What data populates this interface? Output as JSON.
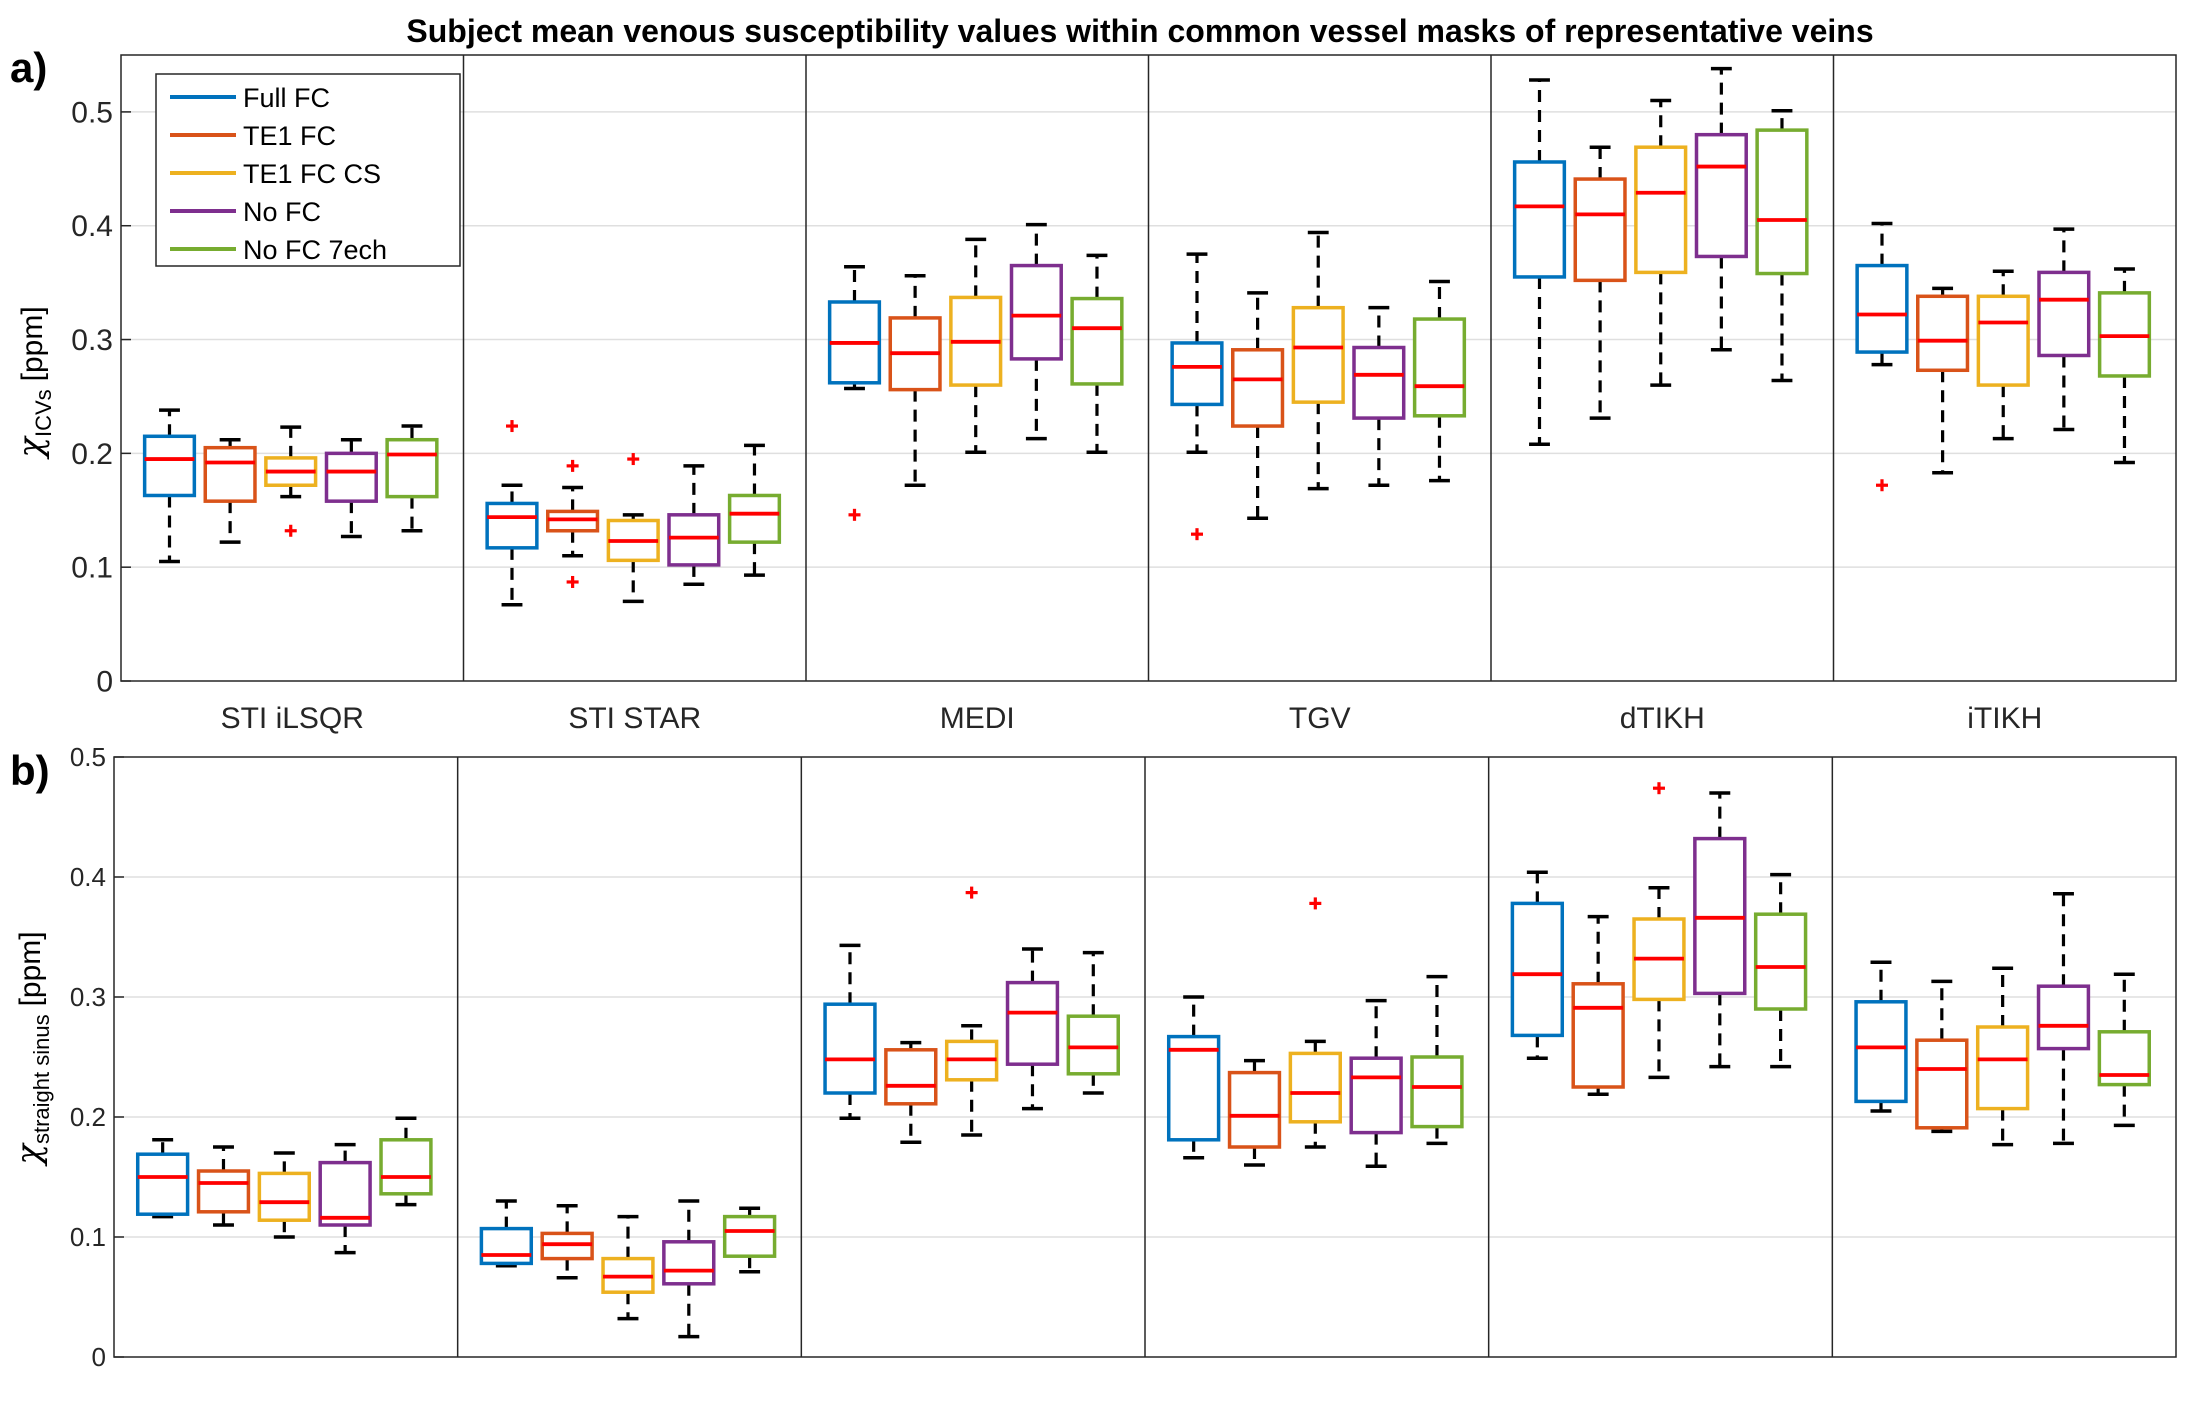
{
  "figure_title": "Subject mean venous susceptibility values within common vessel masks of representative veins",
  "colors": {
    "Full FC": "#0072BD",
    "TE1 FC": "#D95319",
    "TE1 FC CS": "#EDB120",
    "No FC": "#7E2F8E",
    "No FC 7ech": "#77AC30",
    "median": "#FF0000",
    "outlier": "#FF0000",
    "whisker": "#000000",
    "grid": "#DFDFDF"
  },
  "chart_data": [
    {
      "type": "boxplot",
      "panel_label": "a)",
      "title": "Subject mean venous susceptibility values within common vessel masks of representative veins",
      "ylabel_symbol": "χ",
      "ylabel_sub": "ICVs",
      "ylabel_unit": "[ppm]",
      "ylim": [
        0,
        0.55
      ],
      "yticks": [
        0,
        0.1,
        0.2,
        0.3,
        0.4,
        0.5
      ],
      "ytick_labels": [
        "0",
        "0.1",
        "0.2",
        "0.3",
        "0.4",
        "0.5"
      ],
      "grid": true,
      "legend": {
        "position": "top-left",
        "entries": [
          "Full FC",
          "TE1 FC",
          "TE1 FC CS",
          "No FC",
          "No FC 7ech"
        ]
      },
      "groups": [
        {
          "name": "STI iLSQR",
          "boxes": [
            {
              "series": "Full FC",
              "min": 0.105,
              "q1": 0.163,
              "median": 0.195,
              "q3": 0.215,
              "max": 0.238,
              "outliers": []
            },
            {
              "series": "TE1 FC",
              "min": 0.122,
              "q1": 0.158,
              "median": 0.192,
              "q3": 0.205,
              "max": 0.212,
              "outliers": []
            },
            {
              "series": "TE1 FC CS",
              "min": 0.162,
              "q1": 0.172,
              "median": 0.184,
              "q3": 0.196,
              "max": 0.223,
              "outliers": [
                0.132
              ]
            },
            {
              "series": "No FC",
              "min": 0.127,
              "q1": 0.158,
              "median": 0.184,
              "q3": 0.2,
              "max": 0.212,
              "outliers": []
            },
            {
              "series": "No FC 7ech",
              "min": 0.132,
              "q1": 0.162,
              "median": 0.199,
              "q3": 0.212,
              "max": 0.224,
              "outliers": []
            }
          ]
        },
        {
          "name": "STI STAR",
          "boxes": [
            {
              "series": "Full FC",
              "min": 0.067,
              "q1": 0.117,
              "median": 0.144,
              "q3": 0.156,
              "max": 0.172,
              "outliers": [
                0.224
              ]
            },
            {
              "series": "TE1 FC",
              "min": 0.11,
              "q1": 0.132,
              "median": 0.142,
              "q3": 0.149,
              "max": 0.17,
              "outliers": [
                0.189,
                0.087
              ]
            },
            {
              "series": "TE1 FC CS",
              "min": 0.07,
              "q1": 0.106,
              "median": 0.123,
              "q3": 0.141,
              "max": 0.146,
              "outliers": [
                0.195
              ]
            },
            {
              "series": "No FC",
              "min": 0.085,
              "q1": 0.102,
              "median": 0.126,
              "q3": 0.146,
              "max": 0.189,
              "outliers": []
            },
            {
              "series": "No FC 7ech",
              "min": 0.093,
              "q1": 0.122,
              "median": 0.147,
              "q3": 0.163,
              "max": 0.207,
              "outliers": []
            }
          ]
        },
        {
          "name": "MEDI",
          "boxes": [
            {
              "series": "Full FC",
              "min": 0.257,
              "q1": 0.262,
              "median": 0.297,
              "q3": 0.333,
              "max": 0.364,
              "outliers": [
                0.146
              ]
            },
            {
              "series": "TE1 FC",
              "min": 0.172,
              "q1": 0.256,
              "median": 0.288,
              "q3": 0.319,
              "max": 0.356,
              "outliers": []
            },
            {
              "series": "TE1 FC CS",
              "min": 0.201,
              "q1": 0.26,
              "median": 0.298,
              "q3": 0.337,
              "max": 0.388,
              "outliers": []
            },
            {
              "series": "No FC",
              "min": 0.213,
              "q1": 0.283,
              "median": 0.321,
              "q3": 0.365,
              "max": 0.401,
              "outliers": []
            },
            {
              "series": "No FC 7ech",
              "min": 0.201,
              "q1": 0.261,
              "median": 0.31,
              "q3": 0.336,
              "max": 0.374,
              "outliers": []
            }
          ]
        },
        {
          "name": "TGV",
          "boxes": [
            {
              "series": "Full FC",
              "min": 0.201,
              "q1": 0.243,
              "median": 0.276,
              "q3": 0.297,
              "max": 0.375,
              "outliers": [
                0.129
              ]
            },
            {
              "series": "TE1 FC",
              "min": 0.143,
              "q1": 0.224,
              "median": 0.265,
              "q3": 0.291,
              "max": 0.341,
              "outliers": []
            },
            {
              "series": "TE1 FC CS",
              "min": 0.169,
              "q1": 0.245,
              "median": 0.293,
              "q3": 0.328,
              "max": 0.394,
              "outliers": []
            },
            {
              "series": "No FC",
              "min": 0.172,
              "q1": 0.231,
              "median": 0.269,
              "q3": 0.293,
              "max": 0.328,
              "outliers": []
            },
            {
              "series": "No FC 7ech",
              "min": 0.176,
              "q1": 0.233,
              "median": 0.259,
              "q3": 0.318,
              "max": 0.351,
              "outliers": []
            }
          ]
        },
        {
          "name": "dTIKH",
          "boxes": [
            {
              "series": "Full FC",
              "min": 0.208,
              "q1": 0.355,
              "median": 0.417,
              "q3": 0.456,
              "max": 0.528,
              "outliers": []
            },
            {
              "series": "TE1 FC",
              "min": 0.231,
              "q1": 0.352,
              "median": 0.41,
              "q3": 0.441,
              "max": 0.469,
              "outliers": []
            },
            {
              "series": "TE1 FC CS",
              "min": 0.26,
              "q1": 0.359,
              "median": 0.429,
              "q3": 0.469,
              "max": 0.51,
              "outliers": []
            },
            {
              "series": "No FC",
              "min": 0.291,
              "q1": 0.373,
              "median": 0.452,
              "q3": 0.48,
              "max": 0.538,
              "outliers": []
            },
            {
              "series": "No FC 7ech",
              "min": 0.264,
              "q1": 0.358,
              "median": 0.405,
              "q3": 0.484,
              "max": 0.501,
              "outliers": []
            }
          ]
        },
        {
          "name": "iTIKH",
          "boxes": [
            {
              "series": "Full FC",
              "min": 0.278,
              "q1": 0.289,
              "median": 0.322,
              "q3": 0.365,
              "max": 0.402,
              "outliers": [
                0.172
              ]
            },
            {
              "series": "TE1 FC",
              "min": 0.183,
              "q1": 0.273,
              "median": 0.299,
              "q3": 0.338,
              "max": 0.345,
              "outliers": []
            },
            {
              "series": "TE1 FC CS",
              "min": 0.213,
              "q1": 0.26,
              "median": 0.315,
              "q3": 0.338,
              "max": 0.36,
              "outliers": []
            },
            {
              "series": "No FC",
              "min": 0.221,
              "q1": 0.286,
              "median": 0.335,
              "q3": 0.359,
              "max": 0.397,
              "outliers": []
            },
            {
              "series": "No FC 7ech",
              "min": 0.192,
              "q1": 0.268,
              "median": 0.303,
              "q3": 0.341,
              "max": 0.362,
              "outliers": []
            }
          ]
        }
      ]
    },
    {
      "type": "boxplot",
      "panel_label": "b)",
      "ylabel_symbol": "χ",
      "ylabel_sub": "straight sinus",
      "ylabel_unit": "[ppm]",
      "ylim": [
        0,
        0.5
      ],
      "yticks": [
        0,
        0.1,
        0.2,
        0.3,
        0.4,
        0.5
      ],
      "ytick_labels": [
        "0",
        "0.1",
        "0.2",
        "0.3",
        "0.4",
        "0.5"
      ],
      "grid": true,
      "groups": [
        {
          "name": "STI iLSQR",
          "boxes": [
            {
              "series": "Full FC",
              "min": 0.117,
              "q1": 0.119,
              "median": 0.15,
              "q3": 0.169,
              "max": 0.181,
              "outliers": []
            },
            {
              "series": "TE1 FC",
              "min": 0.11,
              "q1": 0.121,
              "median": 0.145,
              "q3": 0.155,
              "max": 0.175,
              "outliers": []
            },
            {
              "series": "TE1 FC CS",
              "min": 0.1,
              "q1": 0.114,
              "median": 0.129,
              "q3": 0.153,
              "max": 0.17,
              "outliers": []
            },
            {
              "series": "No FC",
              "min": 0.087,
              "q1": 0.11,
              "median": 0.116,
              "q3": 0.162,
              "max": 0.177,
              "outliers": []
            },
            {
              "series": "No FC 7ech",
              "min": 0.127,
              "q1": 0.136,
              "median": 0.15,
              "q3": 0.181,
              "max": 0.199,
              "outliers": []
            }
          ]
        },
        {
          "name": "STI STAR",
          "boxes": [
            {
              "series": "Full FC",
              "min": 0.076,
              "q1": 0.078,
              "median": 0.085,
              "q3": 0.107,
              "max": 0.13,
              "outliers": []
            },
            {
              "series": "TE1 FC",
              "min": 0.066,
              "q1": 0.082,
              "median": 0.094,
              "q3": 0.103,
              "max": 0.126,
              "outliers": []
            },
            {
              "series": "TE1 FC CS",
              "min": 0.032,
              "q1": 0.054,
              "median": 0.067,
              "q3": 0.082,
              "max": 0.117,
              "outliers": []
            },
            {
              "series": "No FC",
              "min": 0.017,
              "q1": 0.061,
              "median": 0.072,
              "q3": 0.096,
              "max": 0.13,
              "outliers": []
            },
            {
              "series": "No FC 7ech",
              "min": 0.071,
              "q1": 0.084,
              "median": 0.105,
              "q3": 0.117,
              "max": 0.124,
              "outliers": []
            }
          ]
        },
        {
          "name": "MEDI",
          "boxes": [
            {
              "series": "Full FC",
              "min": 0.199,
              "q1": 0.22,
              "median": 0.248,
              "q3": 0.294,
              "max": 0.343,
              "outliers": []
            },
            {
              "series": "TE1 FC",
              "min": 0.179,
              "q1": 0.211,
              "median": 0.226,
              "q3": 0.256,
              "max": 0.262,
              "outliers": []
            },
            {
              "series": "TE1 FC CS",
              "min": 0.185,
              "q1": 0.231,
              "median": 0.248,
              "q3": 0.263,
              "max": 0.276,
              "outliers": [
                0.387
              ]
            },
            {
              "series": "No FC",
              "min": 0.207,
              "q1": 0.244,
              "median": 0.287,
              "q3": 0.312,
              "max": 0.34,
              "outliers": []
            },
            {
              "series": "No FC 7ech",
              "min": 0.22,
              "q1": 0.236,
              "median": 0.258,
              "q3": 0.284,
              "max": 0.337,
              "outliers": []
            }
          ]
        },
        {
          "name": "TGV",
          "boxes": [
            {
              "series": "Full FC",
              "min": 0.166,
              "q1": 0.181,
              "median": 0.256,
              "q3": 0.267,
              "max": 0.3,
              "outliers": []
            },
            {
              "series": "TE1 FC",
              "min": 0.16,
              "q1": 0.175,
              "median": 0.201,
              "q3": 0.237,
              "max": 0.247,
              "outliers": []
            },
            {
              "series": "TE1 FC CS",
              "min": 0.175,
              "q1": 0.196,
              "median": 0.22,
              "q3": 0.253,
              "max": 0.263,
              "outliers": [
                0.378
              ]
            },
            {
              "series": "No FC",
              "min": 0.159,
              "q1": 0.187,
              "median": 0.233,
              "q3": 0.249,
              "max": 0.297,
              "outliers": []
            },
            {
              "series": "No FC 7ech",
              "min": 0.178,
              "q1": 0.192,
              "median": 0.225,
              "q3": 0.25,
              "max": 0.317,
              "outliers": []
            }
          ]
        },
        {
          "name": "dTIKH",
          "boxes": [
            {
              "series": "Full FC",
              "min": 0.249,
              "q1": 0.268,
              "median": 0.319,
              "q3": 0.378,
              "max": 0.404,
              "outliers": []
            },
            {
              "series": "TE1 FC",
              "min": 0.219,
              "q1": 0.225,
              "median": 0.291,
              "q3": 0.311,
              "max": 0.367,
              "outliers": []
            },
            {
              "series": "TE1 FC CS",
              "min": 0.233,
              "q1": 0.298,
              "median": 0.332,
              "q3": 0.365,
              "max": 0.391,
              "outliers": [
                0.474
              ]
            },
            {
              "series": "No FC",
              "min": 0.242,
              "q1": 0.303,
              "median": 0.366,
              "q3": 0.432,
              "max": 0.47,
              "outliers": []
            },
            {
              "series": "No FC 7ech",
              "min": 0.242,
              "q1": 0.29,
              "median": 0.325,
              "q3": 0.369,
              "max": 0.402,
              "outliers": []
            }
          ]
        },
        {
          "name": "iTIKH",
          "boxes": [
            {
              "series": "Full FC",
              "min": 0.205,
              "q1": 0.213,
              "median": 0.258,
              "q3": 0.296,
              "max": 0.329,
              "outliers": []
            },
            {
              "series": "TE1 FC",
              "min": 0.188,
              "q1": 0.191,
              "median": 0.24,
              "q3": 0.264,
              "max": 0.313,
              "outliers": []
            },
            {
              "series": "TE1 FC CS",
              "min": 0.177,
              "q1": 0.207,
              "median": 0.248,
              "q3": 0.275,
              "max": 0.324,
              "outliers": []
            },
            {
              "series": "No FC",
              "min": 0.178,
              "q1": 0.257,
              "median": 0.276,
              "q3": 0.309,
              "max": 0.386,
              "outliers": []
            },
            {
              "series": "No FC 7ech",
              "min": 0.193,
              "q1": 0.227,
              "median": 0.235,
              "q3": 0.271,
              "max": 0.319,
              "outliers": []
            }
          ]
        }
      ]
    }
  ]
}
